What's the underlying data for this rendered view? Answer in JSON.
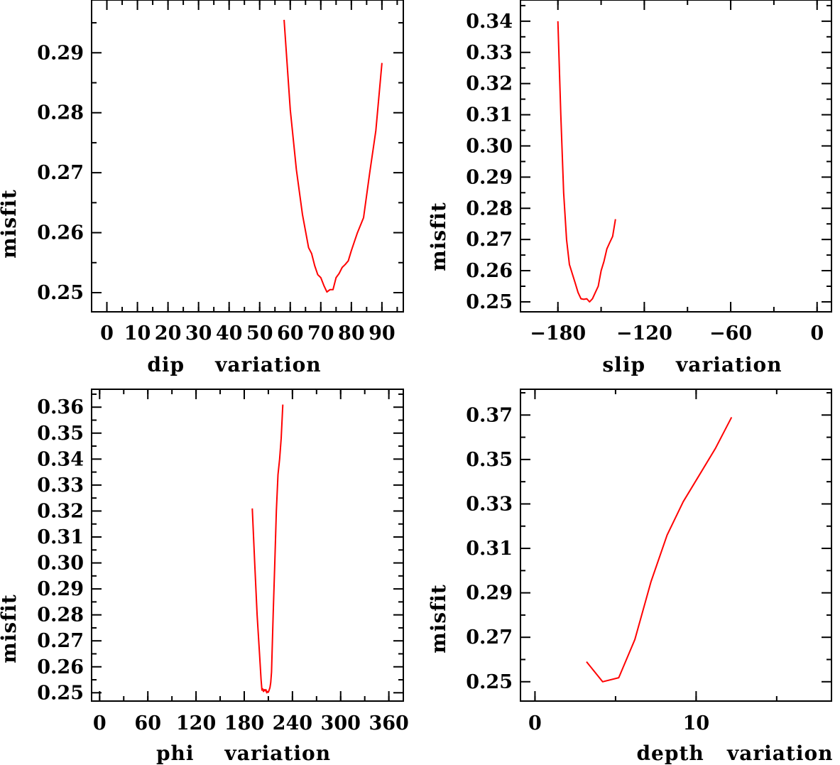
{
  "chart_data": [
    {
      "type": "line",
      "xlabel": "dip    variation",
      "ylabel": "misfit",
      "xlim": [
        -5,
        97
      ],
      "ylim": [
        0.2468,
        0.2988
      ],
      "xticks": [
        0,
        10,
        20,
        30,
        40,
        50,
        60,
        70,
        80,
        90
      ],
      "xtick_labels": [
        "0",
        "10",
        "20",
        "30",
        "40",
        "50",
        "60",
        "70",
        "80",
        "90"
      ],
      "yticks": [
        0.25,
        0.26,
        0.27,
        0.28,
        0.29
      ],
      "ytick_labels": [
        "0.25",
        "0.26",
        "0.27",
        "0.28",
        "0.29"
      ],
      "grid": false,
      "line_color": "#ff0000",
      "series": [
        {
          "x": [
            58,
            60,
            62,
            64,
            66,
            67,
            68,
            69,
            70,
            71,
            72,
            73,
            74,
            75,
            76,
            77,
            78,
            79,
            80,
            81,
            82,
            84,
            86,
            88,
            90
          ],
          "y": [
            0.2955,
            0.2805,
            0.2705,
            0.263,
            0.2575,
            0.2565,
            0.2545,
            0.253,
            0.2525,
            0.2512,
            0.2501,
            0.2505,
            0.2505,
            0.2525,
            0.2532,
            0.2542,
            0.2547,
            0.2553,
            0.257,
            0.2585,
            0.26,
            0.2625,
            0.27,
            0.277,
            0.2883
          ]
        }
      ]
    },
    {
      "type": "line",
      "xlabel": "slip    variation",
      "ylabel": "misfit",
      "xlim": [
        -206,
        10
      ],
      "ylim": [
        0.2468,
        0.3468
      ],
      "xticks": [
        -180,
        -120,
        -60,
        0
      ],
      "xtick_labels": [
        "−180",
        "−120",
        "−60",
        "0"
      ],
      "yticks": [
        0.25,
        0.26,
        0.27,
        0.28,
        0.29,
        0.3,
        0.31,
        0.32,
        0.33,
        0.34
      ],
      "ytick_labels": [
        "0.25",
        "0.26",
        "0.27",
        "0.28",
        "0.29",
        "0.30",
        "0.31",
        "0.32",
        "0.33",
        "0.34"
      ],
      "grid": false,
      "line_color": "#ff0000",
      "series": [
        {
          "x": [
            -180,
            -178,
            -176,
            -174,
            -172,
            -170,
            -168,
            -166,
            -164,
            -162,
            -160,
            -158,
            -156,
            -154,
            -152,
            -150,
            -148,
            -146,
            -144,
            -142,
            -140
          ],
          "y": [
            0.34,
            0.31,
            0.285,
            0.27,
            0.262,
            0.259,
            0.256,
            0.253,
            0.251,
            0.2508,
            0.251,
            0.25,
            0.251,
            0.253,
            0.255,
            0.26,
            0.263,
            0.267,
            0.269,
            0.271,
            0.2765
          ]
        }
      ]
    },
    {
      "type": "line",
      "xlabel": "phi    variation",
      "ylabel": "misfit",
      "xlim": [
        -10,
        378
      ],
      "ylim": [
        0.2468,
        0.3669
      ],
      "xticks": [
        0,
        60,
        120,
        180,
        240,
        300,
        360
      ],
      "xtick_labels": [
        "0",
        "60",
        "120",
        "180",
        "240",
        "300",
        "360"
      ],
      "yticks": [
        0.25,
        0.26,
        0.27,
        0.28,
        0.29,
        0.3,
        0.31,
        0.32,
        0.33,
        0.34,
        0.35,
        0.36
      ],
      "ytick_labels": [
        "0.25",
        "0.26",
        "0.27",
        "0.28",
        "0.29",
        "0.30",
        "0.31",
        "0.32",
        "0.33",
        "0.34",
        "0.35",
        "0.36"
      ],
      "grid": false,
      "line_color": "#ff0000",
      "series": [
        {
          "x": [
            190,
            193,
            196,
            199,
            201,
            202,
            203,
            204,
            205,
            206,
            207,
            208,
            209,
            210,
            211,
            212,
            213,
            214,
            216,
            218,
            220,
            222,
            224,
            226,
            228
          ],
          "y": [
            0.321,
            0.3,
            0.28,
            0.265,
            0.255,
            0.251,
            0.2515,
            0.2505,
            0.2512,
            0.2508,
            0.2512,
            0.25,
            0.2505,
            0.2502,
            0.251,
            0.252,
            0.254,
            0.258,
            0.28,
            0.3,
            0.32,
            0.334,
            0.34,
            0.348,
            0.361
          ]
        }
      ]
    },
    {
      "type": "line",
      "xlabel": "depth   variation",
      "ylabel": "misfit",
      "xlim": [
        -0.9,
        18.4
      ],
      "ylim": [
        0.2413,
        0.3816
      ],
      "xticks": [
        0,
        10
      ],
      "xtick_labels": [
        "0",
        "10"
      ],
      "yticks": [
        0.25,
        0.27,
        0.29,
        0.31,
        0.33,
        0.35,
        0.37
      ],
      "ytick_labels": [
        "0.25",
        "0.27",
        "0.29",
        "0.31",
        "0.33",
        "0.35",
        "0.37"
      ],
      "grid": false,
      "line_color": "#ff0000",
      "series": [
        {
          "x": [
            3.2,
            4.2,
            5.2,
            6.2,
            7.2,
            8.2,
            9.2,
            10.2,
            11.2,
            12.2
          ],
          "y": [
            0.259,
            0.25,
            0.2518,
            0.269,
            0.295,
            0.316,
            0.331,
            0.343,
            0.355,
            0.369
          ]
        }
      ]
    }
  ]
}
